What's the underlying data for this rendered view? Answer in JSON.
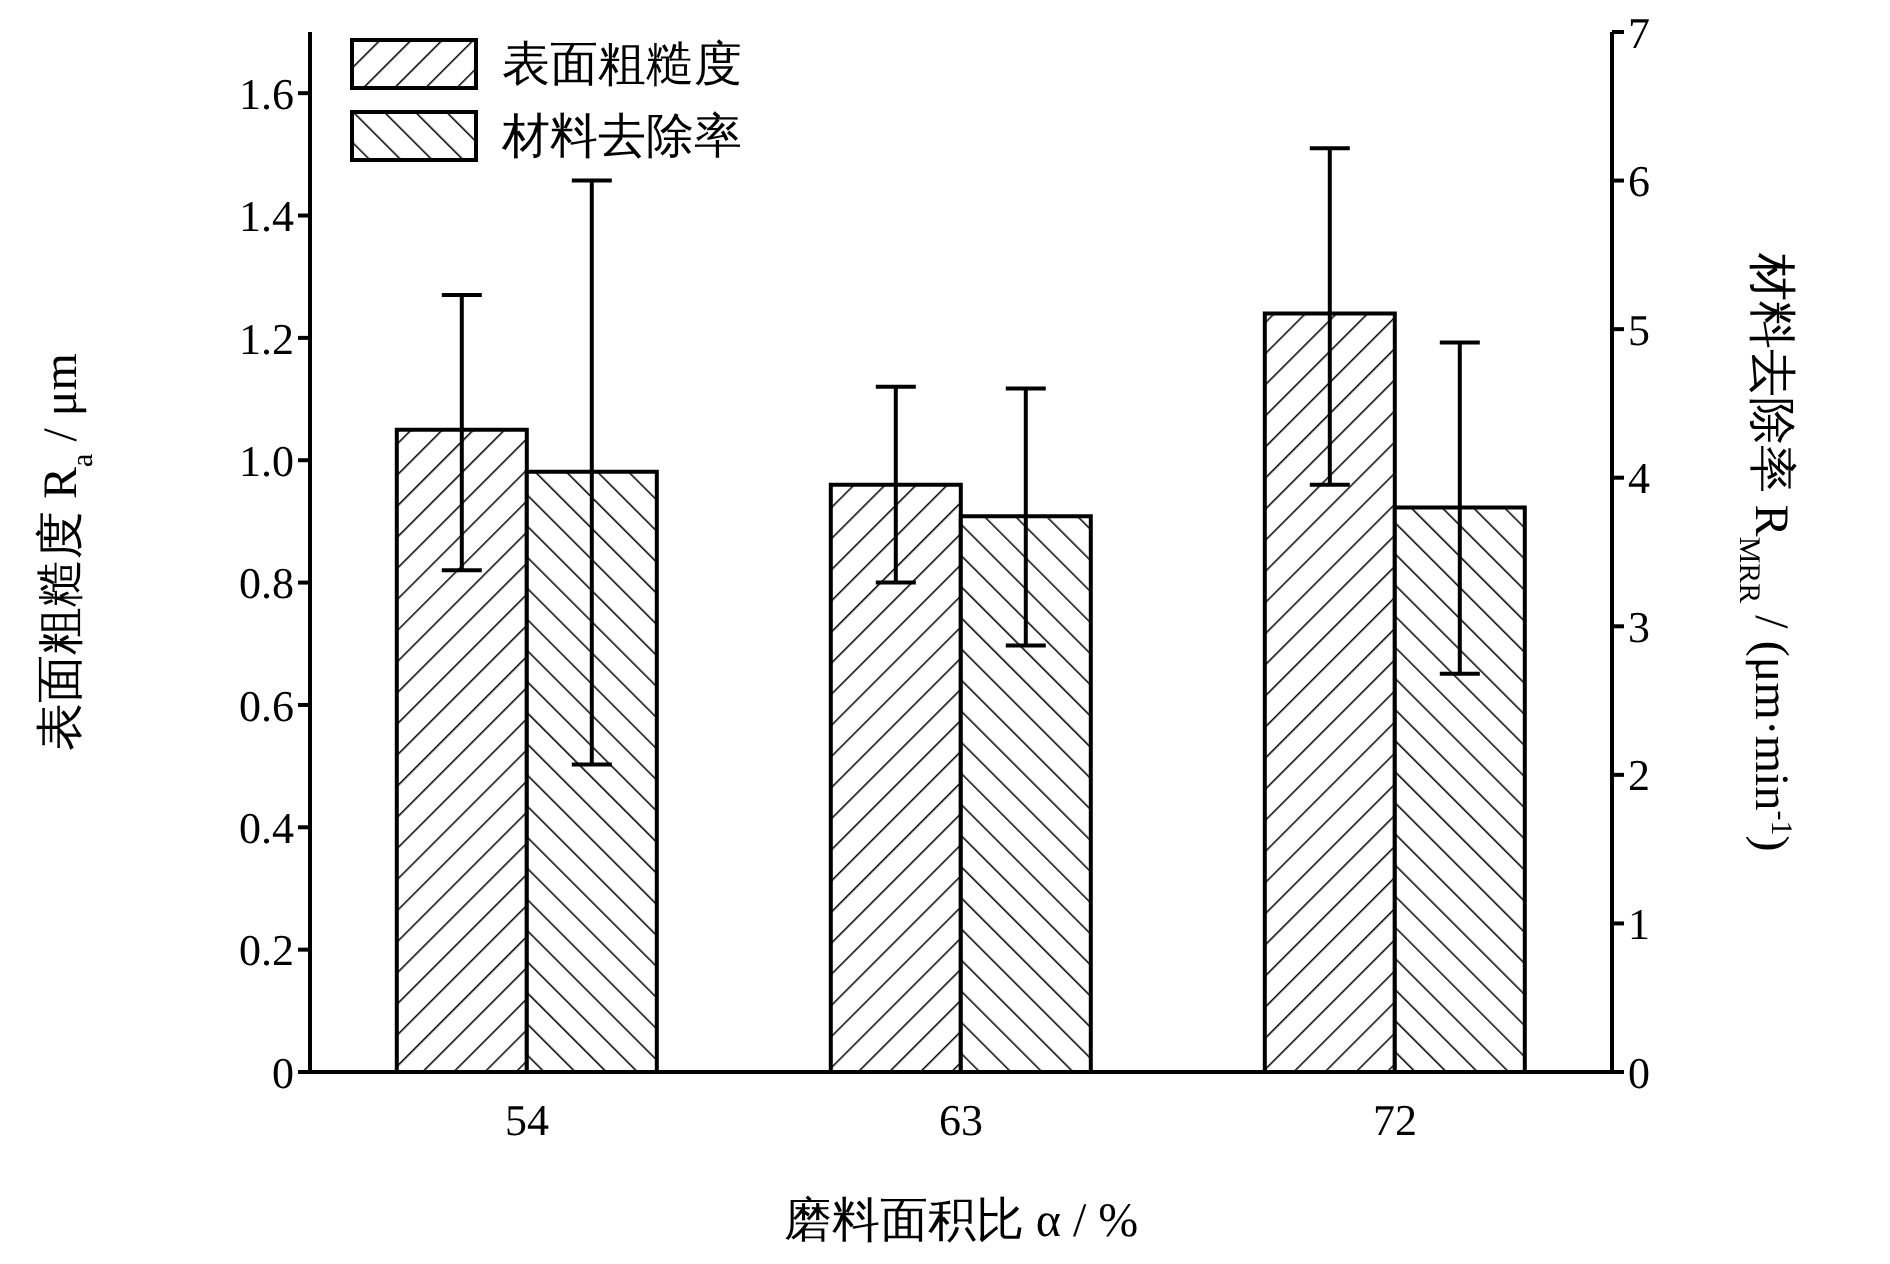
{
  "chart_data": {
    "type": "bar",
    "categories": [
      "54",
      "63",
      "72"
    ],
    "xlabel": "磨料面积比 α / %",
    "ylabel": "表面粗糙度 R$_{a}$ / μm",
    "y2label": "材料去除率 R$_{MRR}$ / (μm·min$^{-1}$)",
    "series": [
      {
        "name": "表面粗糙度",
        "color": "#000000",
        "values": [
          1.05,
          0.96,
          1.24
        ],
        "errors": [
          [
            0.82,
            1.27
          ],
          [
            0.8,
            1.12
          ],
          [
            0.96,
            1.51
          ]
        ]
      },
      {
        "name": "材料去除率",
        "color": "#000000",
        "axis": "y2",
        "values": [
          4.04,
          3.74,
          3.8
        ],
        "errors": [
          [
            2.07,
            6.0
          ],
          [
            2.87,
            4.6
          ],
          [
            2.68,
            4.91
          ]
        ]
      }
    ],
    "ylim": [
      0,
      1.7
    ],
    "yticks": [
      0,
      0.2,
      0.4,
      0.6,
      0.8,
      {
        "value": 1,
        "label": "1.0"
      },
      1.2,
      1.4,
      1.6
    ],
    "y2lim": [
      0,
      7
    ],
    "y2ticks": [
      0,
      1,
      2,
      3,
      4,
      5,
      6,
      7
    ],
    "legend": "top left",
    "grid": false
  }
}
